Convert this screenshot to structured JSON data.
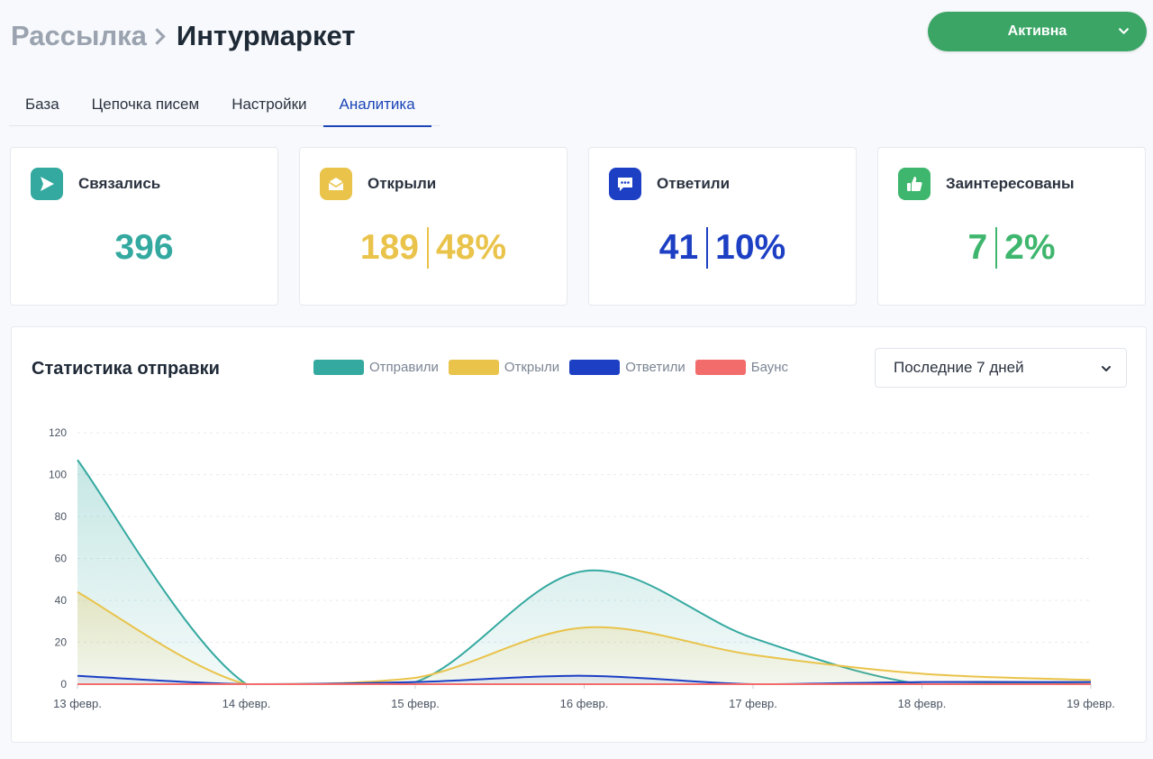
{
  "breadcrumb": {
    "root": "Рассылка",
    "current": "Интурмаркет"
  },
  "status": {
    "label": "Активна",
    "color": "#3aa565"
  },
  "tabs": [
    {
      "label": "База",
      "active": false
    },
    {
      "label": "Цепочка писем",
      "active": false
    },
    {
      "label": "Настройки",
      "active": false
    },
    {
      "label": "Аналитика",
      "active": true
    }
  ],
  "stats": {
    "contacted": {
      "title": "Связались",
      "value": "396",
      "color": "#34a9a0",
      "icon": "send-icon"
    },
    "opened": {
      "title": "Открыли",
      "value": "189",
      "percent": "48%",
      "color": "#e9c34a",
      "icon": "envelope-icon"
    },
    "replied": {
      "title": "Ответили",
      "value": "41",
      "percent": "10%",
      "color": "#1c3fc4",
      "icon": "chat-icon"
    },
    "interested": {
      "title": "Заинтересованы",
      "value": "7",
      "percent": "2%",
      "color": "#3fb66d",
      "icon": "thumbs-up-icon"
    }
  },
  "chart": {
    "title": "Статистика отправки",
    "range_select": "Последние 7 дней"
  },
  "chart_data": {
    "type": "area",
    "x": [
      "13 февр.",
      "14 февр.",
      "15 февр.",
      "16 февр.",
      "17 февр.",
      "18 февр.",
      "19 февр."
    ],
    "ylim": [
      0,
      120
    ],
    "yticks": [
      0,
      20,
      40,
      60,
      80,
      100,
      120
    ],
    "grid": true,
    "legend_placement": "top",
    "series": [
      {
        "name": "Отправили",
        "color": "#34a9a0",
        "values": [
          107,
          0,
          1,
          54,
          22,
          0,
          1
        ]
      },
      {
        "name": "Открыли",
        "color": "#e9c34a",
        "values": [
          44,
          0,
          3,
          27,
          14,
          5,
          2
        ]
      },
      {
        "name": "Ответили",
        "color": "#1c3fc4",
        "values": [
          4,
          0,
          1,
          4,
          0,
          1,
          1
        ]
      },
      {
        "name": "Баунс",
        "color": "#f36c6c",
        "values": [
          0,
          0,
          0,
          0,
          0,
          0,
          0
        ]
      }
    ]
  }
}
